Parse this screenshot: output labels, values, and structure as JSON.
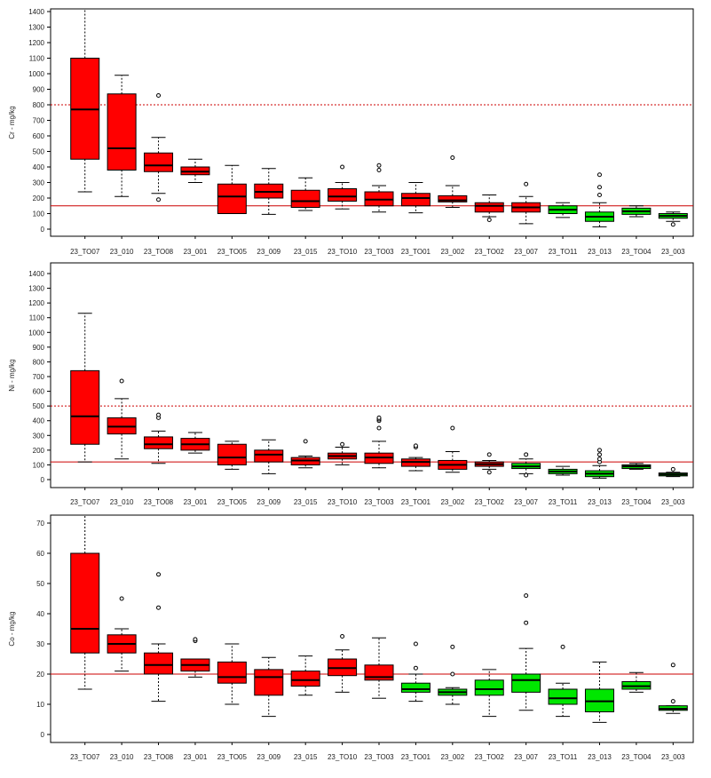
{
  "colors": {
    "red": "#ff0000",
    "green": "#00e600",
    "refline": "#cc0000",
    "axis": "#000000"
  },
  "chart_data": [
    {
      "type": "boxplot",
      "ylabel": "Cr - mg/kg",
      "ylim": [
        0,
        1400
      ],
      "yticks": [
        0,
        100,
        200,
        300,
        400,
        500,
        600,
        700,
        800,
        900,
        1000,
        1100,
        1200,
        1300,
        1400
      ],
      "ref_solid": 150,
      "ref_dashed": 800,
      "categories": [
        "23_TO07",
        "23_010",
        "23_TO08",
        "23_001",
        "23_TO05",
        "23_009",
        "23_015",
        "23_TO10",
        "23_TO03",
        "23_TO01",
        "23_002",
        "23_TO02",
        "23_007",
        "23_TO11",
        "23_013",
        "23_TO04",
        "23_003"
      ],
      "boxes": [
        {
          "q1": 450,
          "median": 770,
          "q3": 1100,
          "wlo": 240,
          "whi": 1450,
          "out": [],
          "color": "red"
        },
        {
          "q1": 380,
          "median": 520,
          "q3": 870,
          "wlo": 210,
          "whi": 990,
          "out": [],
          "color": "red"
        },
        {
          "q1": 370,
          "median": 410,
          "q3": 490,
          "wlo": 230,
          "whi": 590,
          "out": [
            860,
            190
          ],
          "color": "red"
        },
        {
          "q1": 350,
          "median": 370,
          "q3": 400,
          "wlo": 300,
          "whi": 450,
          "out": [],
          "color": "red"
        },
        {
          "q1": 100,
          "median": 210,
          "q3": 290,
          "wlo": 120,
          "whi": 410,
          "out": [],
          "color": "red"
        },
        {
          "q1": 200,
          "median": 240,
          "q3": 290,
          "wlo": 95,
          "whi": 390,
          "out": [],
          "color": "red"
        },
        {
          "q1": 140,
          "median": 180,
          "q3": 250,
          "wlo": 120,
          "whi": 330,
          "out": [],
          "color": "red"
        },
        {
          "q1": 180,
          "median": 210,
          "q3": 260,
          "wlo": 130,
          "whi": 300,
          "out": [
            400
          ],
          "color": "red"
        },
        {
          "q1": 150,
          "median": 190,
          "q3": 240,
          "wlo": 110,
          "whi": 280,
          "out": [
            380,
            410
          ],
          "color": "red"
        },
        {
          "q1": 150,
          "median": 200,
          "q3": 230,
          "wlo": 105,
          "whi": 300,
          "out": [],
          "color": "red"
        },
        {
          "q1": 175,
          "median": 185,
          "q3": 215,
          "wlo": 140,
          "whi": 280,
          "out": [
            460
          ],
          "color": "red"
        },
        {
          "q1": 110,
          "median": 150,
          "q3": 170,
          "wlo": 80,
          "whi": 220,
          "out": [
            60
          ],
          "color": "red"
        },
        {
          "q1": 110,
          "median": 140,
          "q3": 170,
          "wlo": 35,
          "whi": 210,
          "out": [
            290
          ],
          "color": "red"
        },
        {
          "q1": 100,
          "median": 125,
          "q3": 150,
          "wlo": 75,
          "whi": 170,
          "out": [],
          "color": "green"
        },
        {
          "q1": 50,
          "median": 80,
          "q3": 110,
          "wlo": 15,
          "whi": 170,
          "out": [
            220,
            270,
            350
          ],
          "color": "green"
        },
        {
          "q1": 95,
          "median": 115,
          "q3": 135,
          "wlo": 80,
          "whi": 150,
          "out": [],
          "color": "green"
        },
        {
          "q1": 70,
          "median": 85,
          "q3": 100,
          "wlo": 50,
          "whi": 110,
          "out": [
            30
          ],
          "color": "green"
        }
      ]
    },
    {
      "type": "boxplot",
      "ylabel": "Ni - mg/kg",
      "ylim": [
        0,
        1400
      ],
      "yticks": [
        0,
        100,
        200,
        300,
        400,
        500,
        600,
        700,
        800,
        900,
        1000,
        1100,
        1200,
        1300,
        1400
      ],
      "ref_solid": 120,
      "ref_dashed": 500,
      "categories": [
        "23_TO07",
        "23_010",
        "23_TO08",
        "23_001",
        "23_TO05",
        "23_009",
        "23_015",
        "23_TO10",
        "23_TO03",
        "23_TO01",
        "23_002",
        "23_TO02",
        "23_007",
        "23_TO11",
        "23_013",
        "23_TO04",
        "23_003"
      ],
      "boxes": [
        {
          "q1": 240,
          "median": 430,
          "q3": 740,
          "wlo": 120,
          "whi": 1130,
          "out": [],
          "color": "red"
        },
        {
          "q1": 310,
          "median": 360,
          "q3": 420,
          "wlo": 140,
          "whi": 550,
          "out": [
            670
          ],
          "color": "red"
        },
        {
          "q1": 210,
          "median": 240,
          "q3": 290,
          "wlo": 110,
          "whi": 330,
          "out": [
            420,
            440
          ],
          "color": "red"
        },
        {
          "q1": 200,
          "median": 240,
          "q3": 280,
          "wlo": 180,
          "whi": 320,
          "out": [],
          "color": "red"
        },
        {
          "q1": 100,
          "median": 150,
          "q3": 240,
          "wlo": 70,
          "whi": 260,
          "out": [],
          "color": "red"
        },
        {
          "q1": 120,
          "median": 170,
          "q3": 200,
          "wlo": 40,
          "whi": 270,
          "out": [],
          "color": "red"
        },
        {
          "q1": 100,
          "median": 130,
          "q3": 150,
          "wlo": 80,
          "whi": 160,
          "out": [
            260
          ],
          "color": "red"
        },
        {
          "q1": 140,
          "median": 160,
          "q3": 180,
          "wlo": 100,
          "whi": 220,
          "out": [
            240
          ],
          "color": "red"
        },
        {
          "q1": 110,
          "median": 150,
          "q3": 180,
          "wlo": 80,
          "whi": 260,
          "out": [
            350,
            400,
            410,
            420
          ],
          "color": "red"
        },
        {
          "q1": 90,
          "median": 120,
          "q3": 140,
          "wlo": 60,
          "whi": 150,
          "out": [
            220,
            230
          ],
          "color": "red"
        },
        {
          "q1": 70,
          "median": 100,
          "q3": 130,
          "wlo": 50,
          "whi": 190,
          "out": [
            350
          ],
          "color": "red"
        },
        {
          "q1": 90,
          "median": 105,
          "q3": 120,
          "wlo": 70,
          "whi": 130,
          "out": [
            170,
            50
          ],
          "color": "red"
        },
        {
          "q1": 75,
          "median": 90,
          "q3": 110,
          "wlo": 40,
          "whi": 140,
          "out": [
            170,
            30
          ],
          "color": "green"
        },
        {
          "q1": 40,
          "median": 55,
          "q3": 70,
          "wlo": 30,
          "whi": 90,
          "out": [],
          "color": "green"
        },
        {
          "q1": 20,
          "median": 40,
          "q3": 60,
          "wlo": 10,
          "whi": 95,
          "out": [
            120,
            140,
            170,
            200
          ],
          "color": "green"
        },
        {
          "q1": 75,
          "median": 90,
          "q3": 100,
          "wlo": 70,
          "whi": 110,
          "out": [],
          "color": "green"
        },
        {
          "q1": 25,
          "median": 35,
          "q3": 45,
          "wlo": 20,
          "whi": 50,
          "out": [
            70
          ],
          "color": "green"
        }
      ]
    },
    {
      "type": "boxplot",
      "ylabel": "Co - mg/kg",
      "ylim": [
        0,
        70
      ],
      "yticks": [
        0,
        10,
        20,
        30,
        40,
        50,
        60,
        70
      ],
      "ref_solid": 20,
      "ref_dashed": null,
      "categories": [
        "23_TO07",
        "23_010",
        "23_TO08",
        "23_001",
        "23_TO05",
        "23_009",
        "23_015",
        "23_TO10",
        "23_TO03",
        "23_TO01",
        "23_002",
        "23_TO02",
        "23_007",
        "23_TO11",
        "23_013",
        "23_TO04",
        "23_003"
      ],
      "boxes": [
        {
          "q1": 27,
          "median": 35,
          "q3": 60,
          "wlo": 15,
          "whi": 75,
          "out": [],
          "color": "red"
        },
        {
          "q1": 27,
          "median": 30,
          "q3": 33,
          "wlo": 21,
          "whi": 35,
          "out": [
            45
          ],
          "color": "red"
        },
        {
          "q1": 20,
          "median": 23,
          "q3": 27,
          "wlo": 11,
          "whi": 30,
          "out": [
            42,
            53
          ],
          "color": "red"
        },
        {
          "q1": 21,
          "median": 23,
          "q3": 25,
          "wlo": 19,
          "whi": 25,
          "out": [
            31,
            31.5
          ],
          "color": "red"
        },
        {
          "q1": 17,
          "median": 19,
          "q3": 24,
          "wlo": 10,
          "whi": 30,
          "out": [],
          "color": "red"
        },
        {
          "q1": 13,
          "median": 19,
          "q3": 21.5,
          "wlo": 6,
          "whi": 25.5,
          "out": [],
          "color": "red"
        },
        {
          "q1": 16,
          "median": 18,
          "q3": 21,
          "wlo": 13,
          "whi": 26,
          "out": [],
          "color": "red"
        },
        {
          "q1": 19.5,
          "median": 22,
          "q3": 25,
          "wlo": 14,
          "whi": 28,
          "out": [
            32.5
          ],
          "color": "red"
        },
        {
          "q1": 18,
          "median": 19,
          "q3": 23,
          "wlo": 12,
          "whi": 32,
          "out": [],
          "color": "red"
        },
        {
          "q1": 14,
          "median": 15,
          "q3": 17,
          "wlo": 11,
          "whi": 20,
          "out": [
            22,
            30
          ],
          "color": "green"
        },
        {
          "q1": 13,
          "median": 14,
          "q3": 15,
          "wlo": 10,
          "whi": 15.5,
          "out": [
            20,
            29
          ],
          "color": "green"
        },
        {
          "q1": 13,
          "median": 15,
          "q3": 18,
          "wlo": 6,
          "whi": 21.5,
          "out": [],
          "color": "green"
        },
        {
          "q1": 14,
          "median": 18,
          "q3": 20,
          "wlo": 8,
          "whi": 28.5,
          "out": [
            37,
            46
          ],
          "color": "green"
        },
        {
          "q1": 10,
          "median": 12,
          "q3": 15,
          "wlo": 6,
          "whi": 17,
          "out": [
            29
          ],
          "color": "green"
        },
        {
          "q1": 7.5,
          "median": 11,
          "q3": 15,
          "wlo": 4,
          "whi": 24,
          "out": [],
          "color": "green"
        },
        {
          "q1": 15,
          "median": 16,
          "q3": 17.5,
          "wlo": 14,
          "whi": 20.5,
          "out": [],
          "color": "green"
        },
        {
          "q1": 8,
          "median": 8.5,
          "q3": 9.5,
          "wlo": 7,
          "whi": 9.5,
          "out": [
            11,
            23
          ],
          "color": "green"
        }
      ]
    }
  ]
}
